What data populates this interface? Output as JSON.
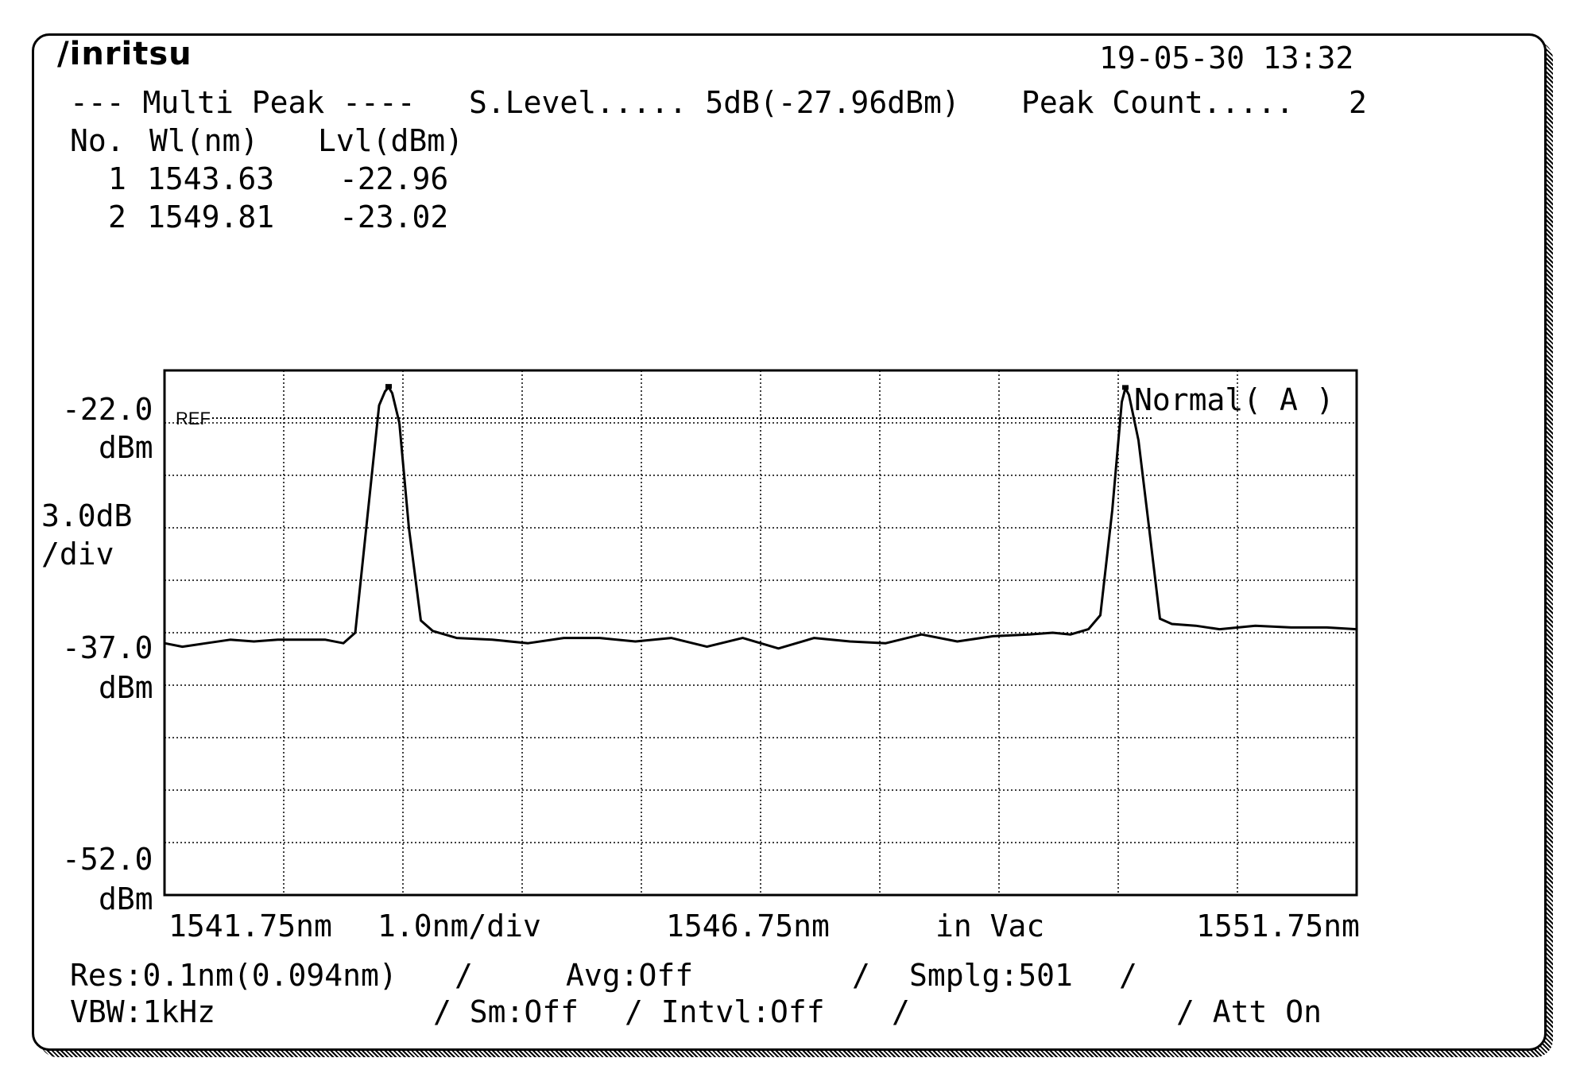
{
  "brand": "/inritsu",
  "datetime": "19-05-30 13:32",
  "header": {
    "mode": "--- Multi Peak ----",
    "slevel": "S.Level..... 5dB(-27.96dBm)",
    "peak_count_label": "Peak Count.....",
    "peak_count_value": "2"
  },
  "table": {
    "columns": [
      "No.",
      "Wl(nm)",
      "Lvl(dBm)"
    ],
    "rows": [
      {
        "no": "1",
        "wl": "1543.63",
        "lvl": "-22.96"
      },
      {
        "no": "2",
        "wl": "1549.81",
        "lvl": "-23.02"
      }
    ]
  },
  "ylabels": {
    "top": "-22.0",
    "top_unit": "dBm",
    "scale": "3.0dB",
    "scale_unit": "/div",
    "mid": "-37.0",
    "mid_unit": "dBm",
    "bot": "-52.0",
    "bot_unit": "dBm"
  },
  "xlabels": {
    "left": "1541.75nm",
    "span": "1.0nm/div",
    "center": "1546.75nm",
    "medium": "in Vac",
    "right": "1551.75nm"
  },
  "ref_label": "REF",
  "trace_label": "Normal( A )",
  "footer": {
    "row1": [
      "Res:0.1nm(0.094nm)",
      "/",
      "Avg:Off",
      "/",
      "Smplg:501",
      "/"
    ],
    "row2": [
      "VBW:1kHz",
      "/ Sm:Off",
      "/ Intvl:Off",
      "/",
      "/ Att On"
    ]
  },
  "chart_data": {
    "type": "line",
    "xlim": [
      1541.75,
      1551.75
    ],
    "ylim": [
      -52.0,
      -22.0
    ],
    "grid": true,
    "series": [
      {
        "x": [
          1541.75,
          1541.9,
          1542.1,
          1542.3,
          1542.5,
          1542.7,
          1542.9,
          1543.1,
          1543.25,
          1543.35,
          1543.45,
          1543.55,
          1543.6,
          1543.63,
          1543.66,
          1543.72,
          1543.8,
          1543.9,
          1544.0,
          1544.2,
          1544.5,
          1544.8,
          1545.1,
          1545.4,
          1545.7,
          1546.0,
          1546.3,
          1546.6,
          1546.9,
          1547.2,
          1547.5,
          1547.8,
          1548.1,
          1548.4,
          1548.7,
          1549.0,
          1549.2,
          1549.35,
          1549.5,
          1549.6,
          1549.7,
          1549.78,
          1549.81,
          1549.84,
          1549.92,
          1550.0,
          1550.1,
          1550.2,
          1550.4,
          1550.6,
          1550.9,
          1551.2,
          1551.5,
          1551.75
        ],
        "y": [
          -37.6,
          -37.8,
          -37.6,
          -37.4,
          -37.5,
          -37.4,
          -37.4,
          -37.4,
          -37.6,
          -37.0,
          -30.5,
          -24.0,
          -23.2,
          -22.96,
          -23.3,
          -25.0,
          -31.0,
          -36.3,
          -36.9,
          -37.3,
          -37.4,
          -37.6,
          -37.3,
          -37.3,
          -37.5,
          -37.3,
          -37.8,
          -37.3,
          -37.9,
          -37.3,
          -37.5,
          -37.6,
          -37.1,
          -37.5,
          -37.2,
          -37.1,
          -37.0,
          -37.1,
          -36.8,
          -36.0,
          -30.0,
          -23.8,
          -23.02,
          -23.4,
          -26.0,
          -30.5,
          -36.2,
          -36.5,
          -36.6,
          -36.8,
          -36.6,
          -36.7,
          -36.7,
          -36.8
        ]
      }
    ]
  }
}
